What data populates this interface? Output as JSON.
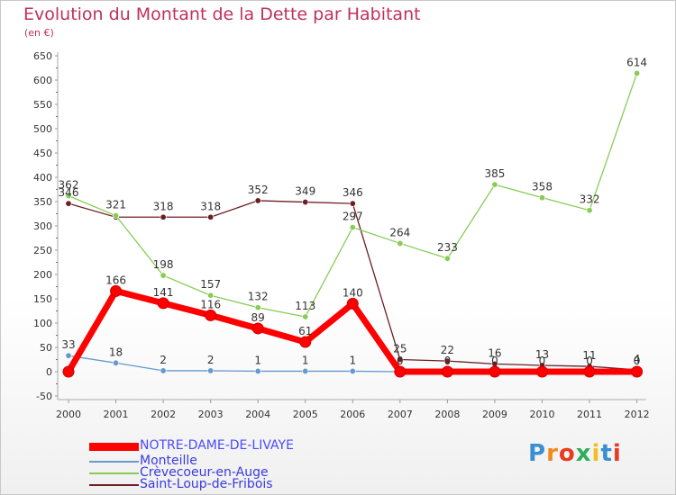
{
  "chart_data": {
    "type": "line",
    "title": "Evolution du Montant de la Dette par Habitant",
    "unit": "(en €)",
    "xlabel": "",
    "ylabel": "",
    "ylim": [
      -50,
      650
    ],
    "ytick_step": 50,
    "grid": false,
    "categories": [
      "2000",
      "2001",
      "2002",
      "2003",
      "2004",
      "2005",
      "2006",
      "2007",
      "2008",
      "2009",
      "2010",
      "2011",
      "2012"
    ],
    "series": [
      {
        "name": "Saint-Loup-de-Fribois",
        "color": "#6b1f25",
        "values": [
          346,
          318,
          318,
          318,
          352,
          349,
          346,
          25,
          22,
          16,
          13,
          11,
          4
        ],
        "labels": [
          "346",
          "",
          "318",
          "318",
          "352",
          "349",
          "346",
          "25",
          "22",
          "16",
          "13",
          "11",
          "4"
        ]
      },
      {
        "name": "Crèvecoeur-en-Auge",
        "color": "#88cc55",
        "values": [
          362,
          321,
          198,
          157,
          132,
          113,
          297,
          264,
          233,
          385,
          358,
          332,
          614
        ],
        "labels": [
          "362",
          "321",
          "198",
          "157",
          "132",
          "113",
          "297",
          "264",
          "233",
          "385",
          "358",
          "332",
          "614"
        ]
      },
      {
        "name": "Monteille",
        "color": "#6699cc",
        "values": [
          33,
          18,
          2,
          2,
          1,
          1,
          1,
          0,
          0,
          0,
          0,
          0,
          0
        ],
        "labels": [
          "33",
          "18",
          "2",
          "2",
          "1",
          "1",
          "1",
          "0",
          "0",
          "0",
          "0",
          "0",
          "0"
        ]
      },
      {
        "name": "NOTRE-DAME-DE-LIVAYE",
        "color": "#ff0000",
        "values": [
          0,
          166,
          141,
          116,
          89,
          61,
          140,
          0,
          0,
          0,
          0,
          0,
          0
        ],
        "labels": [
          "",
          "166",
          "141",
          "116",
          "89",
          "61",
          "140",
          "",
          "",
          "",
          "",
          "",
          ""
        ]
      }
    ],
    "legend": [
      "NOTRE-DAME-DE-LIVAYE",
      "Monteille",
      "Crèvecoeur-en-Auge",
      "Saint-Loup-de-Fribois"
    ],
    "legend_position": "bottom-left"
  },
  "logo": {
    "text": "Proxiti",
    "colors": [
      "#3a8fd0",
      "#f08a1c",
      "#e83a1e",
      "#2fae5a",
      "#f0c020",
      "#3a8fd0",
      "#e83a1e"
    ]
  }
}
